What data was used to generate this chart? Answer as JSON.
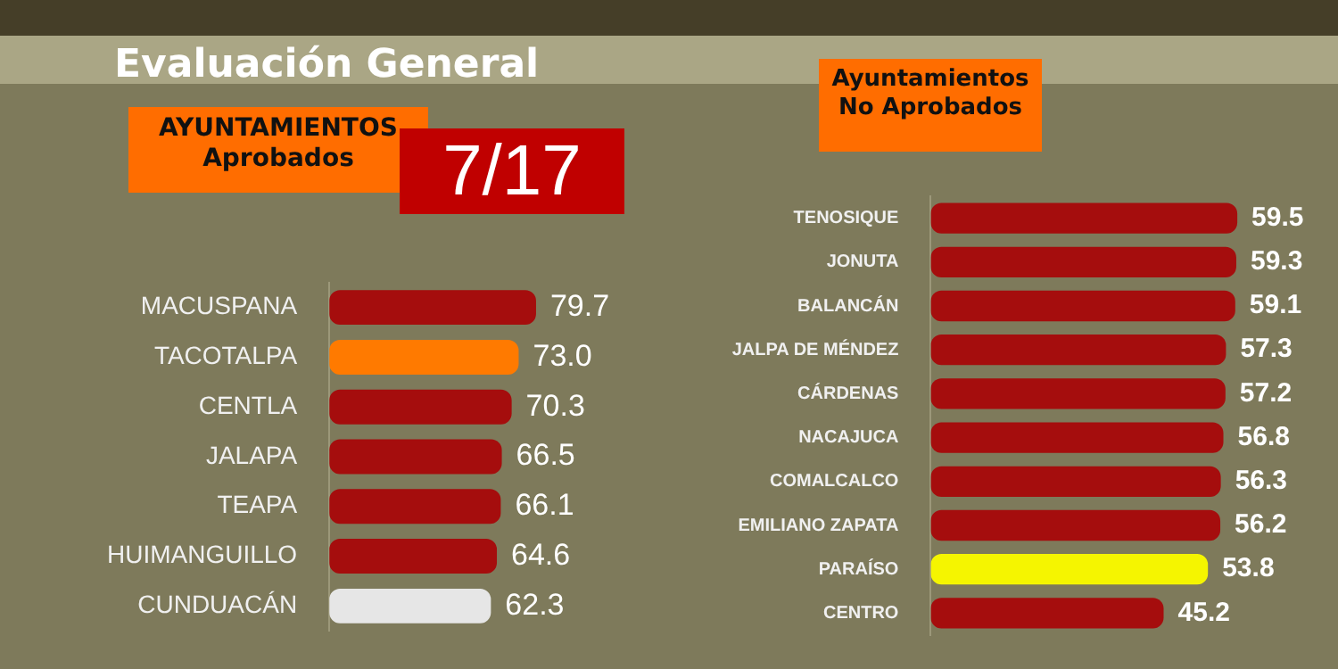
{
  "chart_data": [
    {
      "type": "bar",
      "orientation": "horizontal",
      "title": "Evaluación General",
      "subtitle": "AYUNTAMIENTOS\nAprobados",
      "annotations": [
        "7/17"
      ],
      "categories": [
        "MACUSPANA",
        "TACOTALPA",
        "CENTLA",
        "JALAPA",
        "TEAPA",
        "HUIMANGUILLO",
        "CUNDUACÁN"
      ],
      "values": [
        79.7,
        73.0,
        70.3,
        66.5,
        66.1,
        64.6,
        62.3
      ],
      "colors": [
        "#a50d0d",
        "#ff7a00",
        "#a50d0d",
        "#a50d0d",
        "#a50d0d",
        "#a50d0d",
        "#e6e6e6"
      ],
      "value_labels": [
        "79.7",
        "73.0",
        "70.3",
        "66.5",
        "66.1",
        "64.6",
        "62.3"
      ],
      "tick_labels": "y"
    },
    {
      "type": "bar",
      "orientation": "horizontal",
      "title": "Ayuntamientos\nNo Aprobados",
      "categories": [
        "TENOSIQUE",
        "JONUTA",
        "BALANCÁN",
        "JALPA DE MÉNDEZ",
        "CÁRDENAS",
        "NACAJUCA",
        "COMALCALCO",
        "EMILIANO ZAPATA",
        "PARAÍSO",
        "CENTRO"
      ],
      "values": [
        59.5,
        59.3,
        59.1,
        57.3,
        57.2,
        56.8,
        56.3,
        56.2,
        53.8,
        45.2
      ],
      "colors": [
        "#a50d0d",
        "#a50d0d",
        "#a50d0d",
        "#a50d0d",
        "#a50d0d",
        "#a50d0d",
        "#a50d0d",
        "#a50d0d",
        "#f5f500",
        "#a50d0d"
      ],
      "value_labels": [
        "59.5",
        "59.3",
        "59.1",
        "57.3",
        "57.2",
        "56.8",
        "56.3",
        "56.2",
        "53.8",
        "45.2"
      ],
      "tick_labels": "y"
    }
  ]
}
